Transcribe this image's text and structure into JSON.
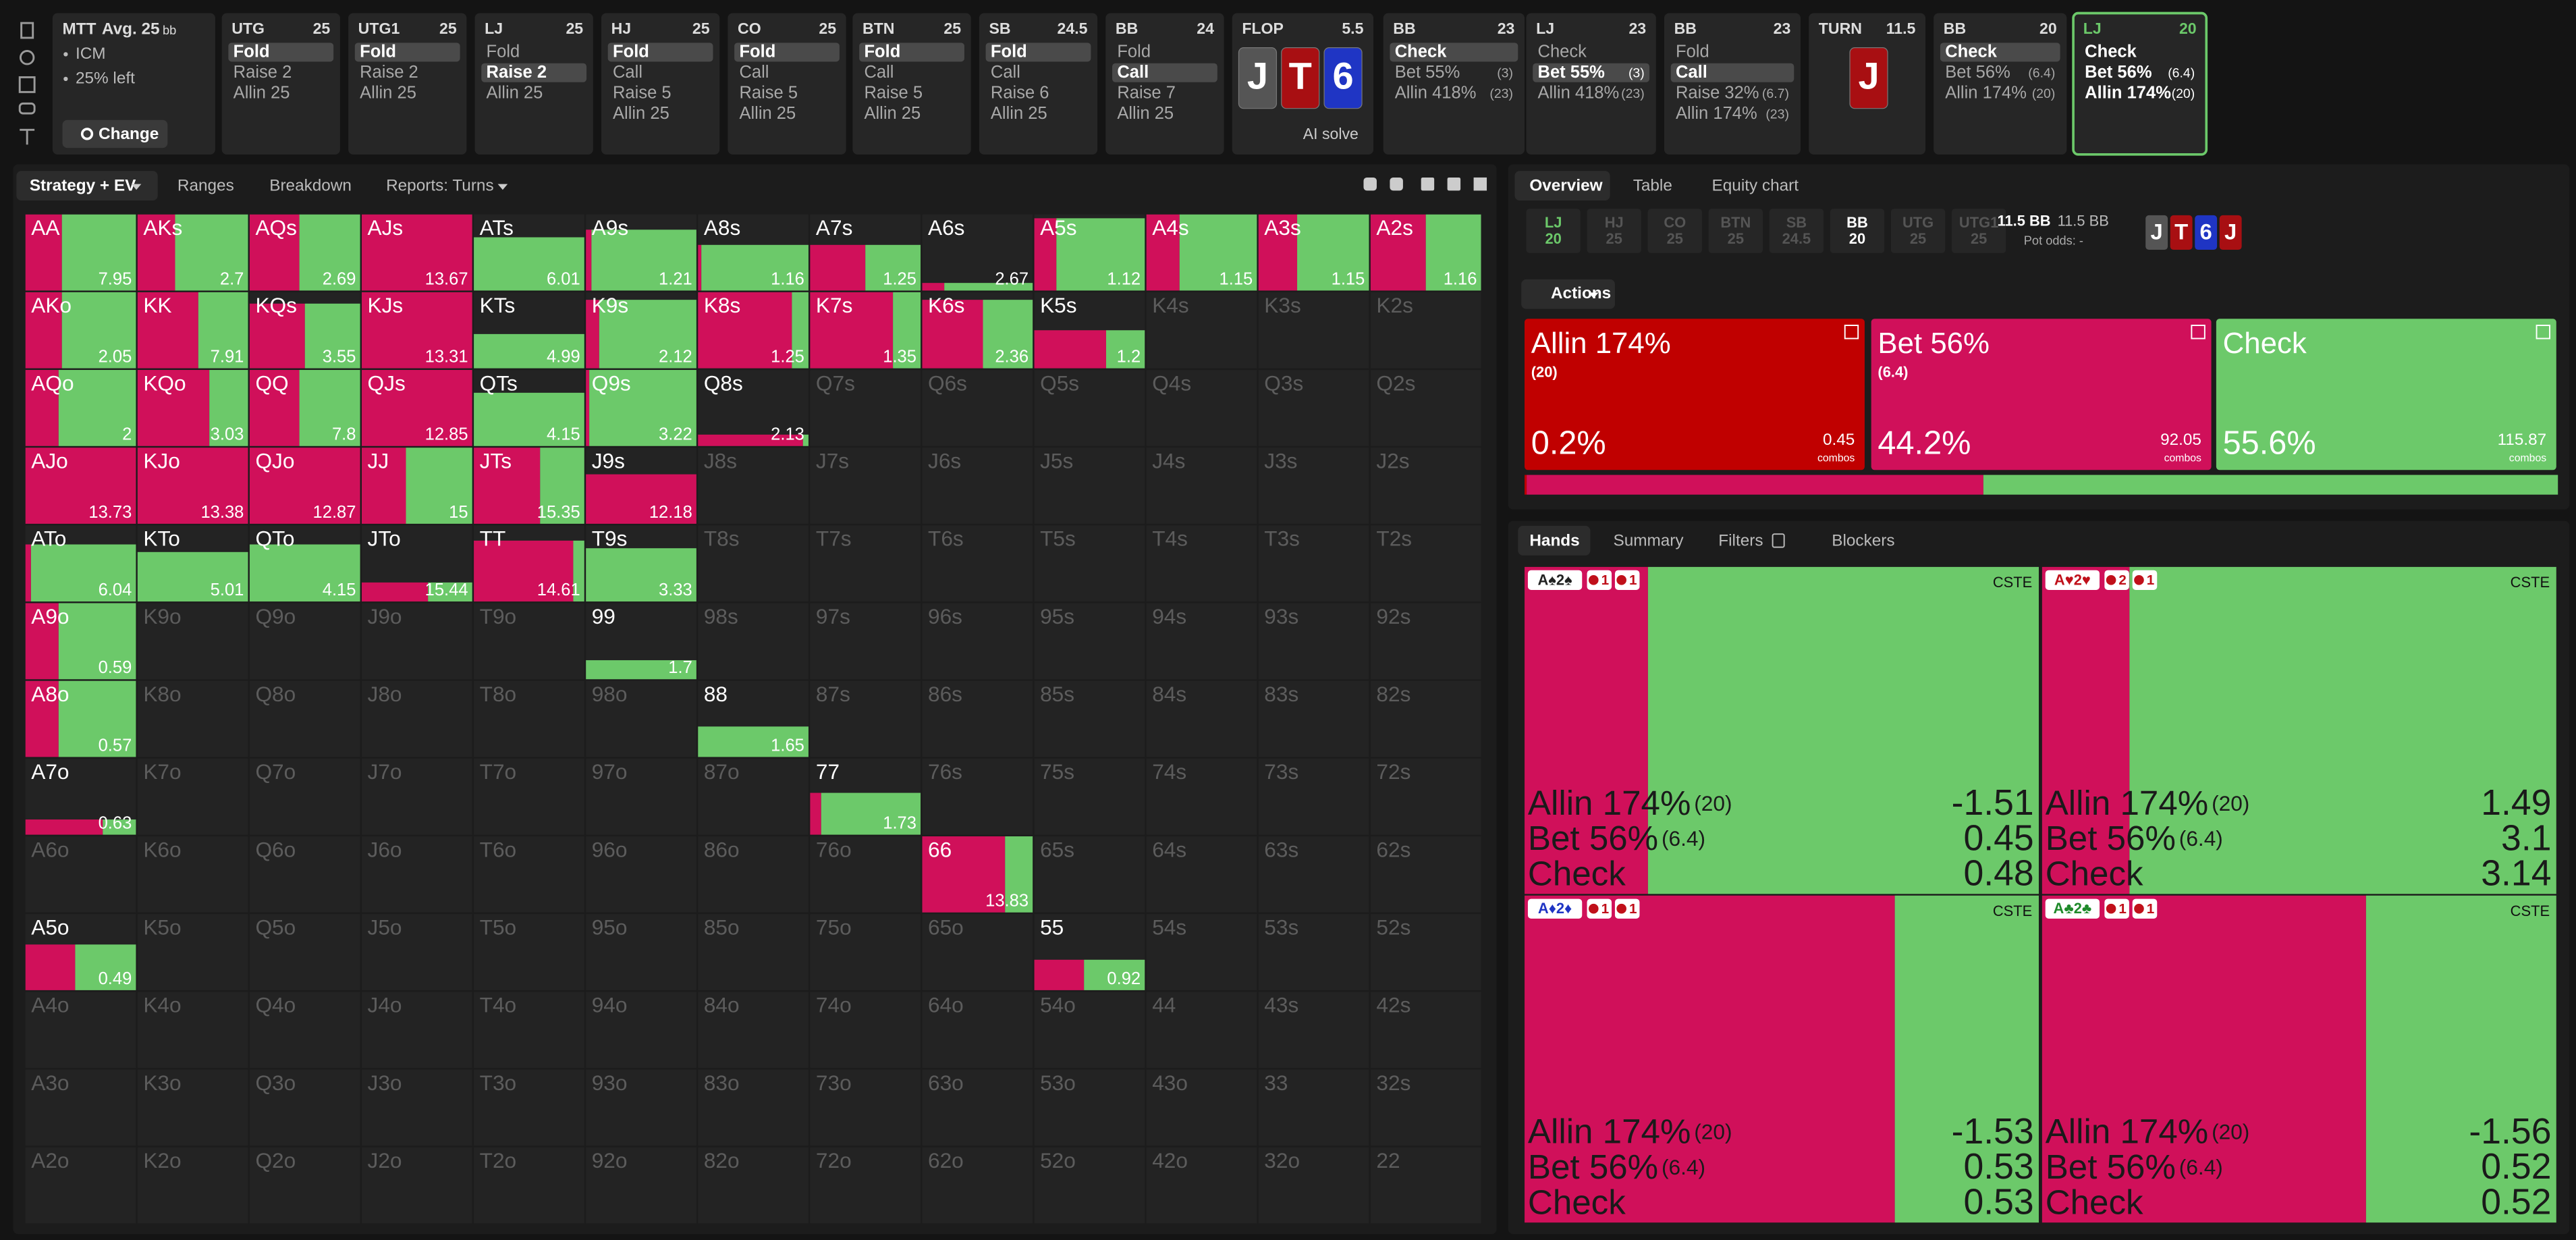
{
  "game": {
    "format": "MTT",
    "avg": "Avg. 25",
    "avg_unit": "bb",
    "notes": [
      "ICM",
      "25% left"
    ],
    "change": "Change"
  },
  "nodes": [
    {
      "pos": "UTG",
      "stack": 25,
      "actions": [
        "Fold",
        "Raise 2",
        "Allin 25"
      ],
      "selected": 0
    },
    {
      "pos": "UTG1",
      "stack": 25,
      "actions": [
        "Fold",
        "Raise 2",
        "Allin 25"
      ],
      "selected": 0
    },
    {
      "pos": "LJ",
      "stack": 25,
      "actions": [
        "Fold",
        "Raise 2",
        "Allin 25"
      ],
      "selected": 1
    },
    {
      "pos": "HJ",
      "stack": 25,
      "actions": [
        "Fold",
        "Call",
        "Raise 5",
        "Allin 25"
      ],
      "selected": 0
    },
    {
      "pos": "CO",
      "stack": 25,
      "actions": [
        "Fold",
        "Call",
        "Raise 5",
        "Allin 25"
      ],
      "selected": 0
    },
    {
      "pos": "BTN",
      "stack": 25,
      "actions": [
        "Fold",
        "Call",
        "Raise 5",
        "Allin 25"
      ],
      "selected": 0
    },
    {
      "pos": "SB",
      "stack": 24.5,
      "actions": [
        "Fold",
        "Call",
        "Raise 6",
        "Allin 25"
      ],
      "selected": 0
    },
    {
      "pos": "BB",
      "stack": 24,
      "actions": [
        "Fold",
        "Call",
        "Raise 7",
        "Allin 25"
      ],
      "selected": 1
    },
    {
      "pos": "FLOP",
      "stack": 5.5,
      "cards": [
        {
          "rank": "J",
          "color": "#555555"
        },
        {
          "rank": "T",
          "color": "#a80f12"
        },
        {
          "rank": "6",
          "color": "#1f35c4"
        }
      ],
      "note": "AI solve"
    },
    {
      "pos": "BB",
      "stack": 23,
      "actions": [
        "Check",
        {
          "label": "Bet 55%",
          "size": "(3)"
        },
        {
          "label": "Allin 418%",
          "size": "(23)"
        }
      ],
      "selected": 0
    },
    {
      "pos": "LJ",
      "stack": 23,
      "actions": [
        "Check",
        {
          "label": "Bet 55%",
          "size": "(3)"
        },
        {
          "label": "Allin 418%",
          "size": "(23)"
        }
      ],
      "selected": 1
    },
    {
      "pos": "BB",
      "stack": 23,
      "actions": [
        "Fold",
        "Call",
        {
          "label": "Raise 32%",
          "size": "(6.7)"
        },
        {
          "label": "Allin 174%",
          "size": "(23)"
        }
      ],
      "selected": 1
    },
    {
      "pos": "TURN",
      "stack": 11.5,
      "cards": [
        {
          "rank": "J",
          "color": "#a80f12"
        }
      ]
    },
    {
      "pos": "BB",
      "stack": 20,
      "actions": [
        "Check",
        {
          "label": "Bet 56%",
          "size": "(6.4)"
        },
        {
          "label": "Allin 174%",
          "size": "(20)"
        }
      ],
      "selected": 0
    },
    {
      "pos": "LJ",
      "stack": 20,
      "actions": [
        "Check",
        {
          "label": "Bet 56%",
          "size": "(6.4)"
        },
        {
          "label": "Allin 174%",
          "size": "(20)"
        }
      ],
      "active": true
    }
  ],
  "toolbar": [
    "Strategy + EV",
    "Ranges",
    "Breakdown",
    "Reports: Turns"
  ],
  "grid": {
    "red": "#d0105a",
    "green": "#6cc96a",
    "rows": [
      [
        {
          "label": "AA",
          "ev": 7.95,
          "fill": 1,
          "red": 0.33
        },
        {
          "label": "AKs",
          "ev": 2.7,
          "fill": 1,
          "red": 0.34
        },
        {
          "label": "AQs",
          "ev": 2.69,
          "fill": 1,
          "red": 0.45
        },
        {
          "label": "AJs",
          "ev": 13.67,
          "fill": 1,
          "red": 1
        },
        {
          "label": "ATs",
          "ev": 6.01,
          "fill": 0.7,
          "red": 0
        },
        {
          "label": "A9s",
          "ev": 1.21,
          "fill": 0.8,
          "red": 0.05
        },
        {
          "label": "A8s",
          "ev": 1.16,
          "fill": 0.6,
          "red": 0.03
        },
        {
          "label": "A7s",
          "ev": 1.25,
          "fill": 0.6,
          "red": 0.5
        },
        {
          "label": "A6s",
          "ev": 2.67,
          "fill": 0.1,
          "red": 0.2
        },
        {
          "label": "A5s",
          "ev": 1.12,
          "fill": 0.95,
          "red": 0.2
        },
        {
          "label": "A4s",
          "ev": 1.15,
          "fill": 1,
          "red": 0.3
        },
        {
          "label": "A3s",
          "ev": 1.15,
          "fill": 1,
          "red": 0.35
        },
        {
          "label": "A2s",
          "ev": 1.16,
          "fill": 1,
          "red": 0.5
        }
      ],
      [
        {
          "label": "AKo",
          "ev": 2.05,
          "fill": 1,
          "red": 0.33
        },
        {
          "label": "KK",
          "ev": 7.91,
          "fill": 1,
          "red": 0.55
        },
        {
          "label": "KQs",
          "ev": 3.55,
          "fill": 0.85,
          "red": 0.5
        },
        {
          "label": "KJs",
          "ev": 13.31,
          "fill": 1,
          "red": 1
        },
        {
          "label": "KTs",
          "ev": 4.99,
          "fill": 0.45,
          "red": 0
        },
        {
          "label": "K9s",
          "ev": 2.12,
          "fill": 0.9,
          "red": 0.12
        },
        {
          "label": "K8s",
          "ev": 1.25,
          "fill": 1,
          "red": 0.85
        },
        {
          "label": "K7s",
          "ev": 1.35,
          "fill": 1,
          "red": 0.75
        },
        {
          "label": "K6s",
          "ev": 2.36,
          "fill": 0.9,
          "red": 0.55
        },
        {
          "label": "K5s",
          "ev": 1.2,
          "fill": 0.5,
          "red": 0.65
        },
        "K4s",
        "K3s",
        "K2s"
      ],
      [
        {
          "label": "AQo",
          "ev": 2,
          "fill": 1,
          "red": 0.3
        },
        {
          "label": "KQo",
          "ev": 3.03,
          "fill": 1,
          "red": 0.65
        },
        {
          "label": "QQ",
          "ev": 7.8,
          "fill": 1,
          "red": 0.45
        },
        {
          "label": "QJs",
          "ev": 12.85,
          "fill": 1,
          "red": 1
        },
        {
          "label": "QTs",
          "ev": 4.15,
          "fill": 0.7,
          "red": 0
        },
        {
          "label": "Q9s",
          "ev": 3.22,
          "fill": 1,
          "red": 0.03
        },
        {
          "label": "Q8s",
          "ev": 2.13,
          "fill": 0.15,
          "red": 0.95
        },
        "Q7s",
        "Q6s",
        "Q5s",
        "Q4s",
        "Q3s",
        "Q2s"
      ],
      [
        {
          "label": "AJo",
          "ev": 13.73,
          "fill": 1,
          "red": 1
        },
        {
          "label": "KJo",
          "ev": 13.38,
          "fill": 1,
          "red": 1
        },
        {
          "label": "QJo",
          "ev": 12.87,
          "fill": 1,
          "red": 1
        },
        {
          "label": "JJ",
          "ev": 15,
          "fill": 1,
          "red": 0.4
        },
        {
          "label": "JTs",
          "ev": 15.35,
          "fill": 1,
          "red": 0.6
        },
        {
          "label": "J9s",
          "ev": 12.18,
          "fill": 0.65,
          "red": 1
        },
        "J8s",
        "J7s",
        "J6s",
        "J5s",
        "J4s",
        "J3s",
        "J2s"
      ],
      [
        {
          "label": "ATo",
          "ev": 6.04,
          "fill": 0.75,
          "red": 0.05
        },
        {
          "label": "KTo",
          "ev": 5.01,
          "fill": 0.65,
          "red": 0
        },
        {
          "label": "QTo",
          "ev": 4.15,
          "fill": 0.75,
          "red": 0
        },
        {
          "label": "JTo",
          "ev": 15.44,
          "fill": 0.25,
          "red": 0.6
        },
        {
          "label": "TT",
          "ev": 14.61,
          "fill": 0.8,
          "red": 0.9
        },
        {
          "label": "T9s",
          "ev": 3.33,
          "fill": 0.7,
          "red": 0
        },
        "T8s",
        "T7s",
        "T6s",
        "T5s",
        "T4s",
        "T3s",
        "T2s"
      ],
      [
        {
          "label": "A9o",
          "ev": 0.59,
          "fill": 1,
          "red": 0.3
        },
        "K9o",
        "Q9o",
        "J9o",
        "T9o",
        {
          "label": "99",
          "ev": 1.7,
          "fill": 0.25,
          "red": 0
        },
        "98s",
        "97s",
        "96s",
        "95s",
        "94s",
        "93s",
        "92s"
      ],
      [
        {
          "label": "A8o",
          "ev": 0.57,
          "fill": 1,
          "red": 0.3
        },
        "K8o",
        "Q8o",
        "J8o",
        "T8o",
        "98o",
        {
          "label": "88",
          "ev": 1.65,
          "fill": 0.4,
          "red": 0
        },
        "87s",
        "86s",
        "85s",
        "84s",
        "83s",
        "82s"
      ],
      [
        {
          "label": "A7o",
          "ev": 0.63,
          "fill": 0.2,
          "red": 0.7
        },
        "K7o",
        "Q7o",
        "J7o",
        "T7o",
        "97o",
        "87o",
        {
          "label": "77",
          "ev": 1.73,
          "fill": 0.55,
          "red": 0.1
        },
        "76s",
        "75s",
        "74s",
        "73s",
        "72s"
      ],
      [
        "A6o",
        "K6o",
        "Q6o",
        "J6o",
        "T6o",
        "96o",
        "86o",
        "76o",
        {
          "label": "66",
          "ev": 13.83,
          "fill": 1,
          "red": 0.75
        },
        "65s",
        "64s",
        "63s",
        "62s"
      ],
      [
        {
          "label": "A5o",
          "ev": 0.49,
          "fill": 0.6,
          "red": 0.45
        },
        "K5o",
        "Q5o",
        "J5o",
        "T5o",
        "95o",
        "85o",
        "75o",
        "65o",
        {
          "label": "55",
          "ev": 0.92,
          "fill": 0.4,
          "red": 0.45
        },
        "54s",
        "53s",
        "52s"
      ],
      [
        "A4o",
        "K4o",
        "Q4o",
        "J4o",
        "T4o",
        "94o",
        "84o",
        "74o",
        "64o",
        "54o",
        "44",
        "43s",
        "42s"
      ],
      [
        "A3o",
        "K3o",
        "Q3o",
        "J3o",
        "T3o",
        "93o",
        "83o",
        "73o",
        "63o",
        "53o",
        "43o",
        "33",
        "32s"
      ],
      [
        "A2o",
        "K2o",
        "Q2o",
        "J2o",
        "T2o",
        "92o",
        "82o",
        "72o",
        "62o",
        "52o",
        "42o",
        "32o",
        "22"
      ]
    ]
  },
  "tabs": [
    "Overview",
    "Table",
    "Equity chart"
  ],
  "positions": [
    {
      "pos": "LJ",
      "stack": 20,
      "color": "#6cc96a"
    },
    {
      "pos": "HJ",
      "stack": 25,
      "color": "#555555"
    },
    {
      "pos": "CO",
      "stack": 25,
      "color": "#555555"
    },
    {
      "pos": "BTN",
      "stack": 25,
      "color": "#555555"
    },
    {
      "pos": "SB",
      "stack": 24.5,
      "color": "#555555"
    },
    {
      "pos": "BB",
      "stack": 20,
      "color": "#ffffff"
    },
    {
      "pos": "UTG",
      "stack": 25,
      "color": "#555555"
    },
    {
      "pos": "UTG1",
      "stack": 25,
      "color": "#555555"
    }
  ],
  "pot": {
    "main": "11.5 BB",
    "second": "11.5 BB",
    "odds": "Pot odds: -"
  },
  "board": [
    {
      "rank": "J",
      "color": "#555555"
    },
    {
      "rank": "T",
      "color": "#a80f12"
    },
    {
      "rank": "6",
      "color": "#1f35c4"
    },
    {
      "rank": "J",
      "color": "#a80f12"
    }
  ],
  "actions_menu": "Actions",
  "actions": [
    {
      "name": "Allin 174%",
      "size": "(20)",
      "freq": {
        "value": 0.2,
        "label": "0.2%"
      },
      "combos": 0.45,
      "unit": "combos",
      "color": "#c00000"
    },
    {
      "name": "Bet 56%",
      "size": "(6.4)",
      "freq": {
        "value": 44.2,
        "label": "44.2%"
      },
      "combos": 92.05,
      "unit": "combos",
      "color": "#d0105a"
    },
    {
      "name": "Check",
      "freq": {
        "value": 55.6,
        "label": "55.6%"
      },
      "combos": 115.87,
      "unit": "combos",
      "color": "#6cc96a"
    }
  ],
  "lower_tabs": [
    "Hands",
    "Summary",
    "Filters",
    "Blockers"
  ],
  "hands": [
    {
      "combo": "A♠2♠",
      "combo_color": "#222222",
      "blockers": [
        "1",
        "1"
      ],
      "tag": "CSTE",
      "red": 0.24,
      "rows": [
        {
          "action": "Allin 174%",
          "size": "(20)",
          "ev": -1.51
        },
        {
          "action": "Bet 56%",
          "size": "(6.4)",
          "ev": 0.45
        },
        {
          "action": "Check",
          "ev": 0.48
        }
      ]
    },
    {
      "combo": "A♥2♥",
      "combo_color": "#c0101a",
      "blockers": [
        "2",
        "1"
      ],
      "tag": "CSTE",
      "red": 0.17,
      "rows": [
        {
          "action": "Allin 174%",
          "size": "(20)",
          "ev": 1.49
        },
        {
          "action": "Bet 56%",
          "size": "(6.4)",
          "ev": 3.1
        },
        {
          "action": "Check",
          "ev": 3.14
        }
      ]
    },
    {
      "combo": "A♦2♦",
      "combo_color": "#1f35c4",
      "blockers": [
        "1",
        "1"
      ],
      "tag": "CSTE",
      "red": 0.72,
      "rows": [
        {
          "action": "Allin 174%",
          "size": "(20)",
          "ev": -1.53
        },
        {
          "action": "Bet 56%",
          "size": "(6.4)",
          "ev": 0.53
        },
        {
          "action": "Check",
          "ev": 0.53
        }
      ]
    },
    {
      "combo": "A♣2♣",
      "combo_color": "#1f8a2a",
      "blockers": [
        "1",
        "1"
      ],
      "tag": "CSTE",
      "red": 0.63,
      "rows": [
        {
          "action": "Allin 174%",
          "size": "(20)",
          "ev": -1.56
        },
        {
          "action": "Bet 56%",
          "size": "(6.4)",
          "ev": 0.52
        },
        {
          "action": "Check",
          "ev": 0.52
        }
      ]
    }
  ]
}
